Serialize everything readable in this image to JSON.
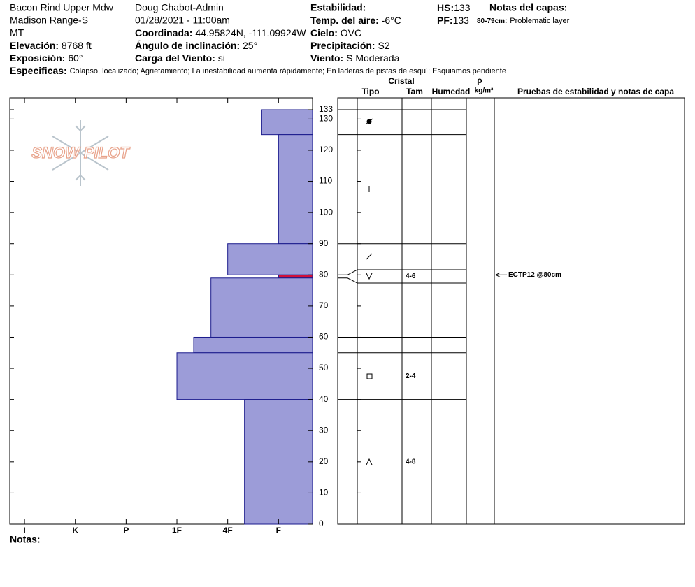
{
  "header": {
    "location": [
      "Bacon Rind Upper Mdw",
      "Madison Range-S",
      "MT"
    ],
    "elevation": {
      "label": "Elevación:",
      "value": "8768 ft"
    },
    "aspect": {
      "label": "Exposición:",
      "value": "60°"
    },
    "observer": "Doug Chabot-Admin",
    "datetime": "01/28/2021 - 11:00am",
    "coordinates": {
      "label": "Coordinada:",
      "value": "44.95824N, -111.09924W"
    },
    "slope": {
      "label": "Ángulo de inclinación:",
      "value": "25°"
    },
    "wind_loading": {
      "label": "Carga del Viento:",
      "value": "si"
    },
    "stability": {
      "label": "Estabilidad:"
    },
    "air_temp": {
      "label": "Temp. del aire:",
      "value": "-6°C"
    },
    "sky": {
      "label": "Cielo:",
      "value": "OVC"
    },
    "precip": {
      "label": "Precipitación:",
      "value": "S2"
    },
    "wind": {
      "label": "Viento:",
      "value": "S Moderada"
    },
    "hs": {
      "label": "HS:",
      "value": 133
    },
    "pf": {
      "label": "PF:",
      "value": 133
    },
    "layer_notes": {
      "label": "Notas del capas:",
      "range": "80-79cm:",
      "text": "Problematic layer"
    },
    "specifics": {
      "label": "Especificas:",
      "text": "Colapso, localizado;  Agrietamiento;  La inestabilidad aumenta rápidamente;  En laderas de pistas de esquí;  Esquiamos pendiente"
    }
  },
  "chart_data": {
    "type": "snow-profile",
    "logo": "SNOW PILOT",
    "xlim": [
      6.29,
      0.33
    ],
    "xticks": [
      {
        "value": 6,
        "label": "I"
      },
      {
        "value": 5,
        "label": "K"
      },
      {
        "value": 4,
        "label": "P"
      },
      {
        "value": 3,
        "label": "1F"
      },
      {
        "value": 2,
        "label": "4F"
      },
      {
        "value": 1,
        "label": "F"
      }
    ],
    "ylim": [
      0,
      133
    ],
    "yticks": [
      0,
      10,
      20,
      30,
      40,
      50,
      60,
      70,
      80,
      90,
      100,
      110,
      120,
      130,
      133
    ],
    "layers": [
      {
        "top": 133,
        "bottom": 125,
        "hardness": 1.33,
        "color": "#9c9cd8"
      },
      {
        "top": 125,
        "bottom": 90,
        "hardness": 1,
        "color": "#9c9cd8"
      },
      {
        "top": 90,
        "bottom": 80,
        "hardness": 2,
        "color": "#9c9cd8"
      },
      {
        "top": 80,
        "bottom": 79,
        "hardness": 1,
        "color": "#d0103a",
        "size": "4-6"
      },
      {
        "top": 79,
        "bottom": 60,
        "hardness": 2.33,
        "color": "#9c9cd8"
      },
      {
        "top": 60,
        "bottom": 55,
        "hardness": 2.67,
        "color": "#9c9cd8"
      },
      {
        "top": 55,
        "bottom": 40,
        "hardness": 3,
        "color": "#9c9cd8",
        "size": "2-4"
      },
      {
        "top": 40,
        "bottom": 0,
        "hardness": 1.67,
        "color": "#9c9cd8",
        "size": "4-8"
      }
    ],
    "headers": {
      "crystal": "Cristal",
      "type": "Tipo",
      "size": "Tam",
      "moisture": "Humedad",
      "density": "ρ",
      "density_unit": "kg/m³",
      "tests": "Pruebas de estabilidad y notas de capa"
    },
    "tests": [
      {
        "depth": 80,
        "text": "ECTP12 @80cm"
      }
    ],
    "notes_label": "Notas:"
  }
}
